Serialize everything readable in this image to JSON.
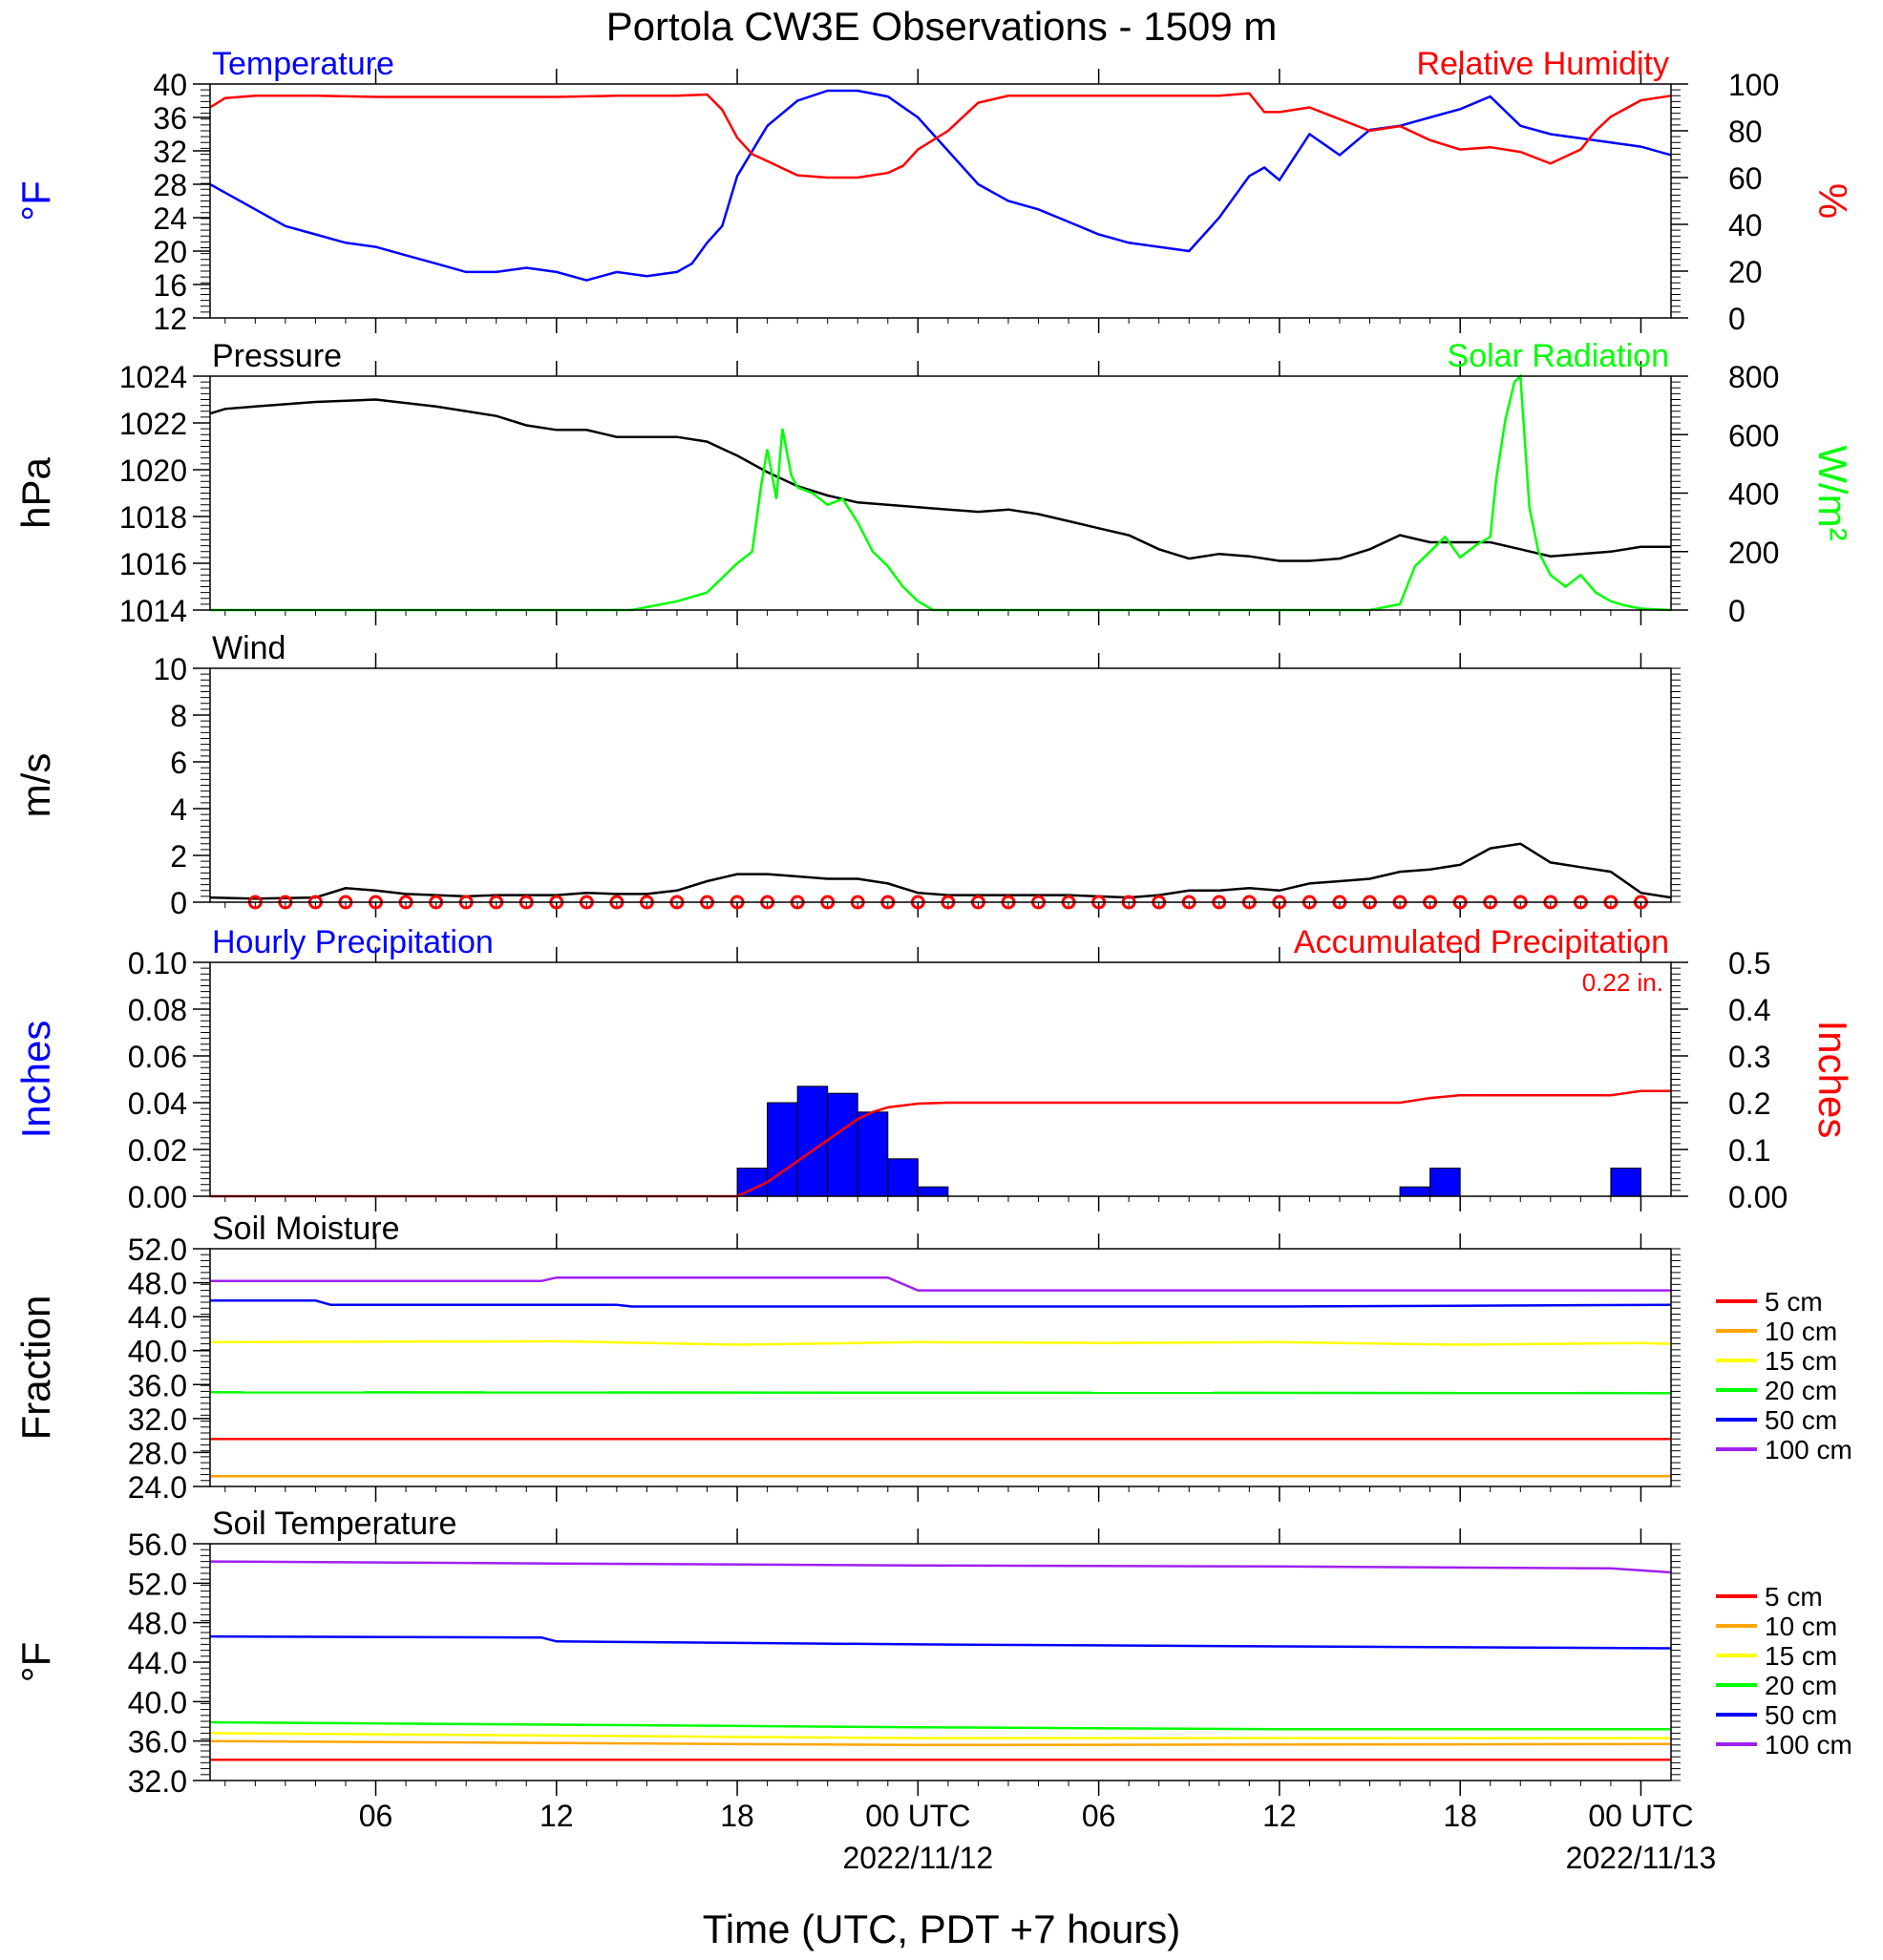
{
  "title": "Portola CW3E Observations - 1509 m",
  "xlabel": "Time (UTC, PDT +7 hours)",
  "colors": {
    "temperature": "#0000ff",
    "humidity": "#ff0000",
    "pressure": "#000000",
    "solar": "#00ff00",
    "wind": "#000000",
    "barb": "#ff0000",
    "precip_bar": "#0000ff",
    "precip_acc": "#ff0000"
  },
  "x_axis": {
    "ticks": [
      {
        "hour": 6,
        "label": "06",
        "date": ""
      },
      {
        "hour": 12,
        "label": "12",
        "date": ""
      },
      {
        "hour": 18,
        "label": "18",
        "date": ""
      },
      {
        "hour": 24,
        "label": "00 UTC",
        "date": "2022/11/12"
      },
      {
        "hour": 30,
        "label": "06",
        "date": ""
      },
      {
        "hour": 36,
        "label": "12",
        "date": ""
      },
      {
        "hour": 42,
        "label": "18",
        "date": ""
      },
      {
        "hour": 48,
        "label": "00 UTC",
        "date": "2022/11/13"
      }
    ]
  },
  "chart_data": [
    {
      "type": "line",
      "name": "temp-rh",
      "left_title": "Temperature",
      "right_title": "Relative Humidity",
      "ylabel_left": "°F",
      "ylabel_right": "%",
      "xlim": [
        0.5,
        49
      ],
      "ylim_left": [
        12,
        40
      ],
      "ylim_right": [
        0,
        100
      ],
      "yticks_left": [
        "12",
        "16",
        "20",
        "24",
        "28",
        "32",
        "36",
        "40"
      ],
      "yticks_right": [
        "0",
        "20",
        "40",
        "60",
        "80",
        "100"
      ],
      "series": [
        {
          "name": "Temperature",
          "axis": "left",
          "color": "#0000ff",
          "x": [
            0.5,
            1,
            2,
            3,
            4,
            5,
            6,
            7,
            8,
            9,
            10,
            11,
            12,
            13,
            14,
            15,
            16,
            16.5,
            17,
            17.5,
            18,
            19,
            20,
            21,
            22,
            23,
            24,
            25,
            26,
            27,
            28,
            29,
            30,
            31,
            32,
            33,
            34,
            35,
            35.5,
            36,
            37,
            38,
            39,
            40,
            41,
            42,
            43,
            44,
            45,
            46,
            47,
            48,
            49
          ],
          "y": [
            28,
            27,
            25,
            23,
            22,
            21,
            20.5,
            19.5,
            18.5,
            17.5,
            17.5,
            18,
            17.5,
            16.5,
            17.5,
            17,
            17.5,
            18.5,
            21,
            23,
            29,
            35,
            38,
            39.2,
            39.2,
            38.5,
            36,
            32,
            28,
            26,
            25,
            23.5,
            22,
            21,
            20.5,
            20,
            24,
            29,
            30,
            28.5,
            34,
            31.5,
            34.5,
            35,
            36,
            37,
            38.5,
            35,
            34,
            33.5,
            33,
            32.5,
            31.5
          ]
        },
        {
          "name": "Relative Humidity",
          "axis": "right",
          "color": "#ff0000",
          "x": [
            0.5,
            1,
            2,
            4,
            6,
            8,
            10,
            12,
            14,
            15,
            16,
            17,
            17.5,
            18,
            18.5,
            19,
            20,
            21,
            22,
            23,
            23.5,
            24,
            25,
            26,
            27,
            28,
            30,
            32,
            34,
            35,
            35.5,
            36,
            37,
            38,
            39,
            40,
            41,
            42,
            43,
            44,
            45,
            46,
            46.5,
            47,
            48,
            49
          ],
          "y": [
            90,
            94,
            95,
            95,
            94.5,
            94.5,
            94.5,
            94.5,
            95,
            95,
            95,
            95.5,
            89,
            77,
            70,
            67,
            61,
            60,
            60,
            62,
            65,
            72,
            80,
            92,
            95,
            95,
            95,
            95,
            95,
            96,
            88,
            88,
            90,
            85,
            80,
            82,
            76,
            72,
            73,
            71,
            66,
            72,
            80,
            86,
            93,
            95
          ]
        }
      ]
    },
    {
      "type": "line",
      "name": "pressure-solar",
      "left_title": "Pressure",
      "right_title": "Solar Radiation",
      "ylabel_left": "hPa",
      "ylabel_right": "W/m²",
      "xlim": [
        0.5,
        49
      ],
      "ylim_left": [
        1014,
        1024
      ],
      "ylim_right": [
        0,
        800
      ],
      "yticks_left": [
        "1014",
        "1016",
        "1018",
        "1020",
        "1022",
        "1024"
      ],
      "yticks_right": [
        "0",
        "200",
        "400",
        "600",
        "800"
      ],
      "series": [
        {
          "name": "Pressure",
          "axis": "left",
          "color": "#000000",
          "x": [
            0.5,
            1,
            2,
            4,
            6,
            8,
            10,
            11,
            12,
            13,
            14,
            16,
            17,
            18,
            19,
            20,
            21,
            22,
            23,
            24,
            25,
            26,
            27,
            28,
            29,
            30,
            31,
            32,
            33,
            34,
            35,
            36,
            37,
            38,
            39,
            40,
            41,
            42,
            43,
            44,
            45,
            46,
            47,
            48,
            49
          ],
          "y": [
            1022.4,
            1022.6,
            1022.7,
            1022.9,
            1023,
            1022.7,
            1022.3,
            1021.9,
            1021.7,
            1021.7,
            1021.4,
            1021.4,
            1021.2,
            1020.6,
            1019.9,
            1019.3,
            1018.9,
            1018.6,
            1018.5,
            1018.4,
            1018.3,
            1018.2,
            1018.3,
            1018.1,
            1017.8,
            1017.5,
            1017.2,
            1016.6,
            1016.2,
            1016.4,
            1016.3,
            1016.1,
            1016.1,
            1016.2,
            1016.6,
            1017.2,
            1016.9,
            1016.9,
            1016.9,
            1016.6,
            1016.3,
            1016.4,
            1016.5,
            1016.7,
            1016.7
          ]
        },
        {
          "name": "Solar Radiation",
          "axis": "right",
          "color": "#00ff00",
          "x": [
            0.5,
            5,
            10,
            14.5,
            15,
            16,
            17,
            17.5,
            18,
            18.5,
            18.8,
            19,
            19.3,
            19.5,
            19.8,
            20,
            20.5,
            21,
            21.5,
            22,
            22.5,
            23,
            23.5,
            24,
            24.5,
            25,
            30,
            35,
            39,
            40,
            40.5,
            41,
            41.5,
            42,
            42.5,
            43,
            43.2,
            43.5,
            43.8,
            44,
            44.3,
            44.6,
            45,
            45.5,
            46,
            46.5,
            47,
            47.5,
            48,
            49
          ],
          "y": [
            0,
            0,
            0,
            0,
            10,
            30,
            60,
            110,
            160,
            200,
            430,
            550,
            380,
            620,
            460,
            420,
            400,
            360,
            380,
            300,
            200,
            150,
            80,
            30,
            0,
            0,
            0,
            0,
            0,
            20,
            150,
            200,
            250,
            180,
            220,
            250,
            450,
            650,
            780,
            800,
            350,
            200,
            120,
            80,
            120,
            60,
            30,
            15,
            5,
            0
          ]
        }
      ]
    },
    {
      "type": "line",
      "name": "wind",
      "left_title": "Wind",
      "ylabel_left": "m/s",
      "xlim": [
        0.5,
        49
      ],
      "ylim_left": [
        0,
        10
      ],
      "yticks_left": [
        "0",
        "2",
        "4",
        "6",
        "8",
        "10"
      ],
      "series": [
        {
          "name": "Wind",
          "axis": "left",
          "color": "#000000",
          "x": [
            0.5,
            2,
            4,
            5,
            6,
            7,
            8,
            9,
            10,
            11,
            12,
            13,
            14,
            15,
            16,
            17,
            18,
            19,
            20,
            21,
            22,
            23,
            24,
            25,
            26,
            27,
            28,
            29,
            30,
            31,
            32,
            33,
            34,
            35,
            36,
            37,
            38,
            39,
            40,
            41,
            42,
            43,
            44,
            45,
            46,
            47,
            48,
            49
          ],
          "y": [
            0.2,
            0.15,
            0.2,
            0.6,
            0.5,
            0.35,
            0.3,
            0.25,
            0.3,
            0.3,
            0.3,
            0.4,
            0.35,
            0.35,
            0.5,
            0.9,
            1.2,
            1.2,
            1.1,
            1.0,
            1.0,
            0.8,
            0.4,
            0.3,
            0.3,
            0.3,
            0.3,
            0.3,
            0.25,
            0.2,
            0.3,
            0.5,
            0.5,
            0.6,
            0.5,
            0.8,
            0.9,
            1.0,
            1.3,
            1.4,
            1.6,
            2.3,
            2.5,
            1.7,
            1.5,
            1.3,
            0.4,
            0.2
          ]
        },
        {
          "name": "Barbs",
          "axis": "left",
          "color": "#ff0000",
          "x": [
            2,
            3,
            4,
            5,
            6,
            7,
            8,
            9,
            10,
            11,
            12,
            13,
            14,
            15,
            16,
            17,
            18,
            19,
            20,
            21,
            22,
            23,
            24,
            25,
            26,
            27,
            28,
            29,
            30,
            31,
            32,
            33,
            34,
            35,
            36,
            37,
            38,
            39,
            40,
            41,
            42,
            43,
            44,
            45,
            46,
            47,
            48
          ],
          "y": [
            0,
            0,
            0,
            0,
            0,
            0,
            0,
            0,
            0,
            0,
            0,
            0,
            0,
            0,
            0,
            0,
            0,
            0,
            0,
            0,
            0,
            0,
            0,
            0,
            0,
            0,
            0,
            0,
            0,
            0,
            0,
            0,
            0,
            0,
            0,
            0,
            0,
            0,
            0,
            0,
            0,
            0,
            0,
            0,
            0,
            0,
            0
          ]
        }
      ]
    },
    {
      "type": "bar",
      "name": "precipitation",
      "left_title": "Hourly Precipitation",
      "right_title": "Accumulated Precipitation",
      "total_label": "0.22 in.",
      "ylabel_left": "Inches",
      "ylabel_right": "Inches",
      "xlim": [
        0.5,
        49
      ],
      "ylim_left": [
        0,
        0.1
      ],
      "ylim_right": [
        0,
        0.5
      ],
      "yticks_left": [
        "0.00",
        "0.02",
        "0.04",
        "0.06",
        "0.08",
        "0.10"
      ],
      "yticks_right": [
        "0.00",
        "0.1",
        "0.2",
        "0.3",
        "0.4",
        "0.5"
      ],
      "bars": {
        "x": [
          18.5,
          19.5,
          20.5,
          21.5,
          22.5,
          23.5,
          24.5,
          40.5,
          41.5,
          47.5
        ],
        "values": [
          0.012,
          0.04,
          0.047,
          0.044,
          0.036,
          0.016,
          0.004,
          0.004,
          0.012,
          0.012
        ]
      },
      "series": [
        {
          "name": "Accumulated Precipitation",
          "axis": "right",
          "color": "#ff0000",
          "x": [
            0.5,
            18,
            19,
            20,
            21,
            22,
            22.5,
            23,
            24,
            25,
            30,
            35,
            40,
            41,
            42,
            43,
            44,
            47,
            48,
            49
          ],
          "y": [
            0,
            0,
            0.03,
            0.075,
            0.12,
            0.165,
            0.18,
            0.19,
            0.198,
            0.2,
            0.2,
            0.2,
            0.2,
            0.21,
            0.216,
            0.216,
            0.216,
            0.216,
            0.225,
            0.225
          ]
        }
      ]
    },
    {
      "type": "line",
      "name": "soil-moisture",
      "left_title": "Soil Moisture",
      "ylabel_left": "Fraction",
      "xlim": [
        0.5,
        49
      ],
      "ylim_left": [
        24,
        52
      ],
      "yticks_left": [
        "24.0",
        "28.0",
        "32.0",
        "36.0",
        "40.0",
        "44.0",
        "48.0",
        "52.0"
      ],
      "legend": [
        "5 cm",
        "10 cm",
        "15 cm",
        "20 cm",
        "50 cm",
        "100 cm"
      ],
      "series": [
        {
          "name": "5 cm",
          "axis": "left",
          "color": "#ff0000",
          "x": [
            0.5,
            49
          ],
          "y": [
            29.6,
            29.6
          ]
        },
        {
          "name": "10 cm",
          "axis": "left",
          "color": "#ffa500",
          "x": [
            0.5,
            49
          ],
          "y": [
            25.2,
            25.2
          ]
        },
        {
          "name": "15 cm",
          "axis": "left",
          "color": "#ffff00",
          "x": [
            0.5,
            12,
            18,
            24,
            30,
            36,
            42,
            48,
            49
          ],
          "y": [
            41,
            41.1,
            40.7,
            41,
            40.9,
            41,
            40.7,
            40.9,
            40.8
          ]
        },
        {
          "name": "20 cm",
          "axis": "left",
          "color": "#00ff00",
          "x": [
            0.5,
            49
          ],
          "y": [
            35.1,
            35.0
          ]
        },
        {
          "name": "50 cm",
          "axis": "left",
          "color": "#0000ff",
          "x": [
            0.5,
            4,
            4.5,
            14,
            14.5,
            24,
            36,
            49
          ],
          "y": [
            45.9,
            45.9,
            45.4,
            45.4,
            45.2,
            45.2,
            45.2,
            45.4
          ]
        },
        {
          "name": "100 cm",
          "axis": "left",
          "color": "#a020f0",
          "x": [
            0.5,
            11.5,
            12,
            23,
            24,
            49
          ],
          "y": [
            48.2,
            48.2,
            48.6,
            48.6,
            47.1,
            47.1
          ]
        }
      ]
    },
    {
      "type": "line",
      "name": "soil-temperature",
      "left_title": "Soil Temperature",
      "ylabel_left": "°F",
      "xlim": [
        0.5,
        49
      ],
      "ylim_left": [
        32,
        56
      ],
      "yticks_left": [
        "32.0",
        "36.0",
        "40.0",
        "44.0",
        "48.0",
        "52.0",
        "56.0"
      ],
      "legend": [
        "5 cm",
        "10 cm",
        "15 cm",
        "20 cm",
        "50 cm",
        "100 cm"
      ],
      "series": [
        {
          "name": "5 cm",
          "axis": "left",
          "color": "#ff0000",
          "x": [
            0.5,
            49
          ],
          "y": [
            34.1,
            34.1
          ]
        },
        {
          "name": "10 cm",
          "axis": "left",
          "color": "#ffa500",
          "x": [
            0.5,
            24,
            49
          ],
          "y": [
            36.0,
            35.6,
            35.7
          ]
        },
        {
          "name": "15 cm",
          "axis": "left",
          "color": "#ffff00",
          "x": [
            0.5,
            24,
            49
          ],
          "y": [
            36.8,
            36.3,
            36.3
          ]
        },
        {
          "name": "20 cm",
          "axis": "left",
          "color": "#00ff00",
          "x": [
            0.5,
            24,
            36,
            49
          ],
          "y": [
            37.9,
            37.4,
            37.2,
            37.2
          ]
        },
        {
          "name": "50 cm",
          "axis": "left",
          "color": "#0000ff",
          "x": [
            0.5,
            11.5,
            12,
            24,
            36,
            49
          ],
          "y": [
            46.6,
            46.5,
            46.1,
            45.8,
            45.6,
            45.4
          ]
        },
        {
          "name": "100 cm",
          "axis": "left",
          "color": "#a020f0",
          "x": [
            0.5,
            12,
            24,
            36,
            47,
            49
          ],
          "y": [
            54.2,
            54.0,
            53.8,
            53.7,
            53.5,
            53.1
          ]
        }
      ]
    }
  ]
}
